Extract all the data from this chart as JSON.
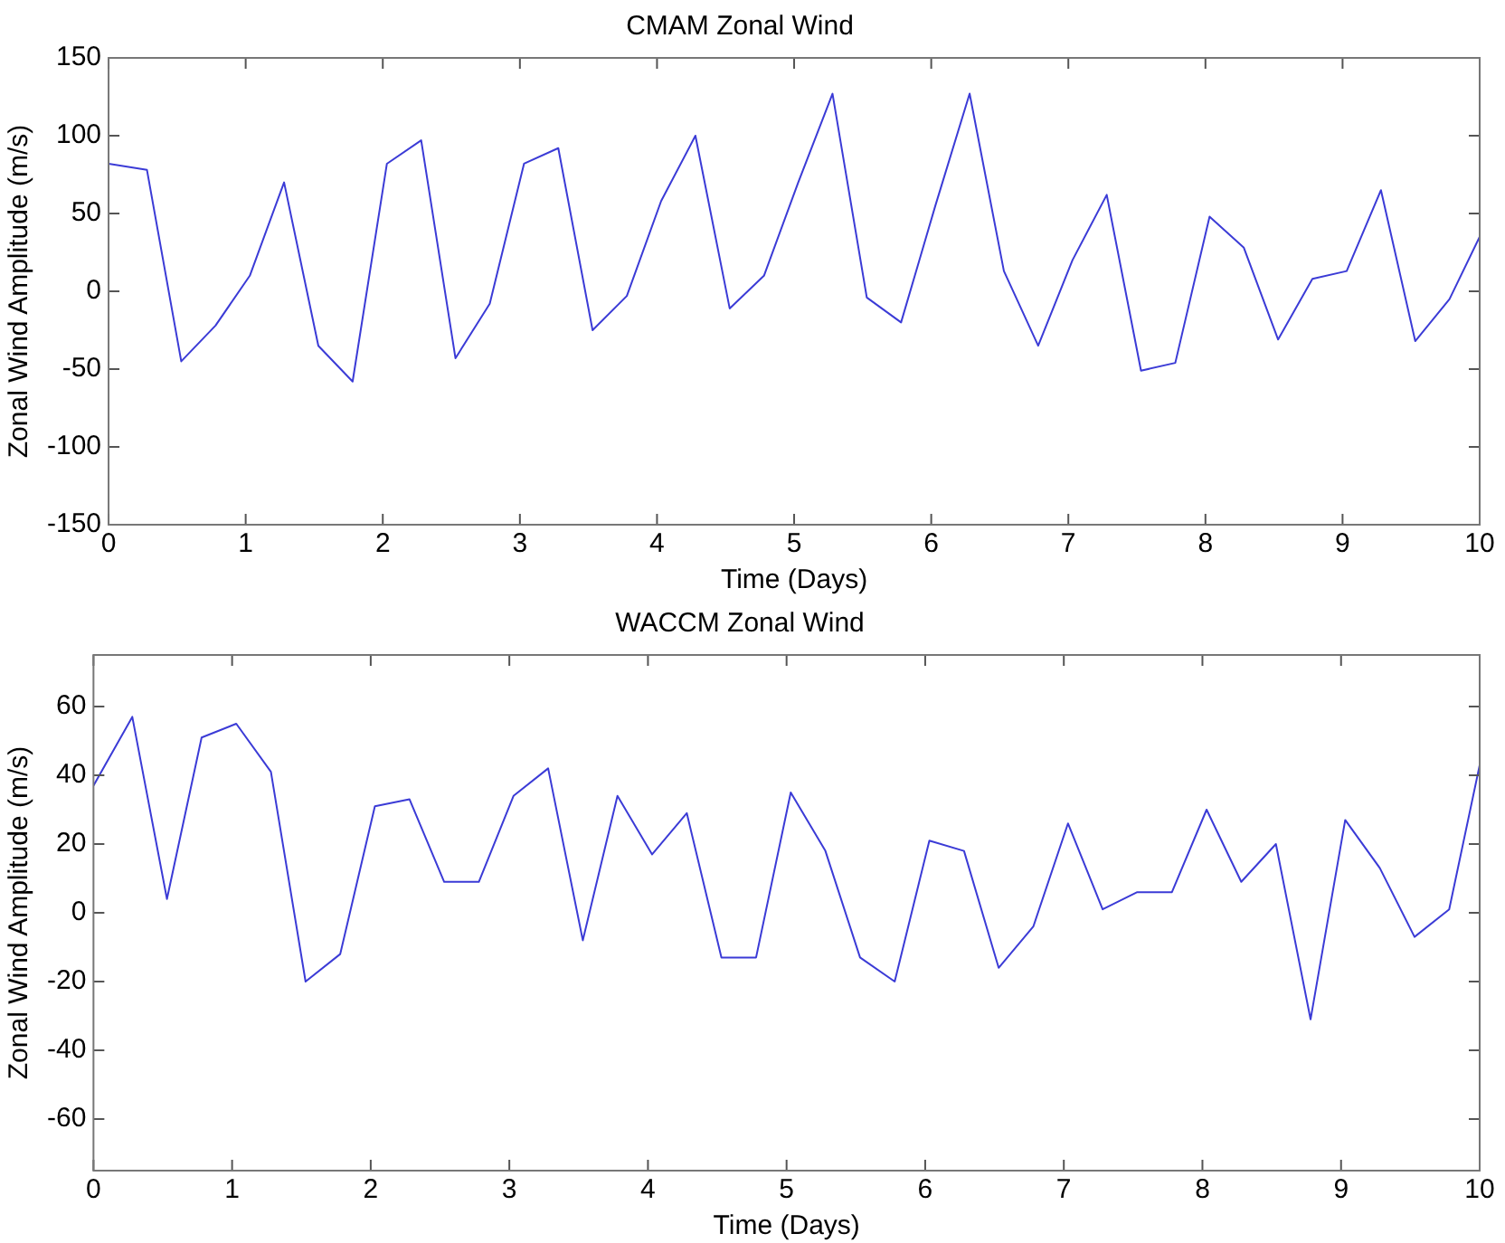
{
  "chart_data": [
    {
      "type": "line",
      "title": "CMAM Zonal Wind",
      "xlabel": "Time (Days)",
      "ylabel": "Zonal Wind Amplitude (m/s)",
      "x": [
        0,
        0.28,
        0.53,
        0.78,
        1.03,
        1.28,
        1.53,
        1.78,
        2.03,
        2.28,
        2.53,
        2.78,
        3.03,
        3.28,
        3.53,
        3.78,
        4.03,
        4.28,
        4.53,
        4.78,
        5.03,
        5.28,
        5.53,
        5.78,
        6.03,
        6.28,
        6.53,
        6.78,
        7.03,
        7.28,
        7.53,
        7.78,
        8.03,
        8.28,
        8.53,
        8.78,
        9.03,
        9.28,
        9.53,
        9.78,
        10
      ],
      "series": [
        {
          "color": "#3b3bd6",
          "values": [
            82,
            78,
            -45,
            -22,
            10,
            70,
            -35,
            -58,
            82,
            97,
            -43,
            -8,
            82,
            92,
            -25,
            -3,
            58,
            100,
            -11,
            10,
            70,
            127,
            -4,
            -20,
            55,
            127,
            13,
            -35,
            20,
            62,
            -51,
            -46,
            48,
            28,
            -31,
            8,
            13,
            65,
            -32,
            -5,
            35
          ]
        }
      ],
      "xlim": [
        0,
        10
      ],
      "xticks": [
        0,
        1,
        2,
        3,
        4,
        5,
        6,
        7,
        8,
        9,
        10
      ],
      "ylim": [
        -150,
        150
      ],
      "yticks": [
        -150,
        -100,
        -50,
        0,
        50,
        100,
        150
      ],
      "grid": false,
      "legend": false,
      "marker": "none",
      "line_style": "solid"
    },
    {
      "type": "line",
      "title": "WACCM Zonal Wind",
      "xlabel": "Time (Days)",
      "ylabel": "Zonal Wind Amplitude (m/s)",
      "x": [
        0,
        0.28,
        0.53,
        0.78,
        1.03,
        1.28,
        1.53,
        1.78,
        2.03,
        2.28,
        2.53,
        2.78,
        3.03,
        3.28,
        3.53,
        3.78,
        4.03,
        4.28,
        4.53,
        4.78,
        5.03,
        5.28,
        5.53,
        5.78,
        6.03,
        6.28,
        6.53,
        6.78,
        7.03,
        7.28,
        7.53,
        7.78,
        8.03,
        8.28,
        8.53,
        8.78,
        9.03,
        9.28,
        9.53,
        9.78,
        10
      ],
      "series": [
        {
          "color": "#3b3bd6",
          "values": [
            37,
            57,
            4,
            51,
            55,
            41,
            -20,
            -12,
            31,
            33,
            9,
            9,
            34,
            42,
            -8,
            34,
            17,
            29,
            -13,
            -13,
            35,
            18,
            -13,
            -20,
            21,
            18,
            -16,
            -4,
            26,
            1,
            6,
            6,
            30,
            9,
            20,
            -31,
            27,
            13,
            -7,
            1,
            43
          ]
        }
      ],
      "xlim": [
        0,
        10
      ],
      "xticks": [
        0,
        1,
        2,
        3,
        4,
        5,
        6,
        7,
        8,
        9,
        10
      ],
      "ylim": [
        -75,
        75
      ],
      "yticks": [
        -60,
        -40,
        -20,
        0,
        20,
        40,
        60
      ],
      "grid": false,
      "legend": false,
      "marker": "none",
      "line_style": "solid"
    }
  ]
}
